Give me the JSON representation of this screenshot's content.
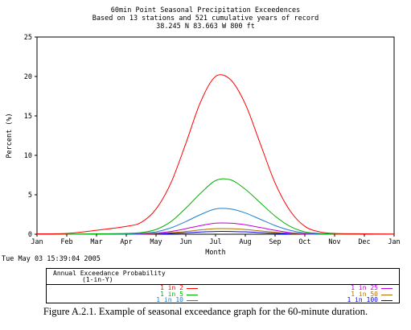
{
  "header": {
    "title": "60min Point Seasonal Precipitation Exceedences",
    "subtitle": "Based on 13 stations and 521 cumulative years of record",
    "location": "38.245 N 83.663 W 800 ft"
  },
  "timestamp": "Tue May 03 15:39:04 2005",
  "legend": {
    "title": "Annual Exceedance Probability",
    "subtitle": "(1-in-Y)",
    "items": [
      {
        "label": "1 in 2",
        "color": "#ff0000"
      },
      {
        "label": "1 in 5",
        "color": "#00b000"
      },
      {
        "label": "1 in 10",
        "color": "#1a80d0"
      },
      {
        "label": "1 in 25",
        "color": "#c000e0"
      },
      {
        "label": "1 in 50",
        "color": "#b07000"
      },
      {
        "label": "1 in 100",
        "color": "#0000ff"
      }
    ]
  },
  "caption": "Figure A.2.1.  Example of seasonal exceedance graph for the 60-minute duration.",
  "chart_data": {
    "type": "line",
    "xlabel": "Month",
    "ylabel": "Percent (%)",
    "x_ticks": [
      "Jan",
      "Feb",
      "Mar",
      "Apr",
      "May",
      "Jun",
      "Jul",
      "Aug",
      "Sep",
      "Oct",
      "Nov",
      "Dec",
      "Jan"
    ],
    "y_ticks": [
      "0",
      "5",
      "10",
      "15",
      "20",
      "25"
    ],
    "ylim": [
      0,
      25
    ],
    "x": [
      0,
      1,
      2,
      3,
      3.5,
      4,
      4.5,
      5,
      5.5,
      6,
      6.5,
      7,
      7.5,
      8,
      8.5,
      9,
      9.5,
      10,
      11,
      12
    ],
    "series": [
      {
        "name": "1 in 2",
        "values": [
          0.05,
          0.1,
          0.5,
          1.0,
          1.5,
          3.2,
          6.5,
          11.5,
          16.8,
          20.0,
          19.6,
          16.5,
          11.5,
          6.5,
          3.0,
          1.0,
          0.3,
          0.1,
          0.05,
          0.02
        ]
      },
      {
        "name": "1 in 5",
        "values": [
          0.0,
          0.0,
          0.05,
          0.1,
          0.2,
          0.6,
          1.6,
          3.3,
          5.2,
          6.8,
          6.9,
          5.7,
          4.0,
          2.3,
          1.0,
          0.3,
          0.1,
          0.02,
          0.0,
          0.0
        ]
      },
      {
        "name": "1 in 10",
        "values": [
          0.0,
          0.0,
          0.02,
          0.05,
          0.1,
          0.3,
          0.8,
          1.6,
          2.5,
          3.2,
          3.2,
          2.7,
          1.9,
          1.1,
          0.5,
          0.15,
          0.05,
          0.0,
          0.0,
          0.0
        ]
      },
      {
        "name": "1 in 25",
        "values": [
          0.0,
          0.0,
          0.0,
          0.02,
          0.05,
          0.15,
          0.35,
          0.7,
          1.1,
          1.4,
          1.4,
          1.2,
          0.85,
          0.5,
          0.2,
          0.07,
          0.02,
          0.0,
          0.0,
          0.0
        ]
      },
      {
        "name": "1 in 50",
        "values": [
          0.0,
          0.0,
          0.0,
          0.01,
          0.03,
          0.08,
          0.2,
          0.35,
          0.55,
          0.7,
          0.7,
          0.6,
          0.42,
          0.25,
          0.1,
          0.03,
          0.01,
          0.0,
          0.0,
          0.0
        ]
      },
      {
        "name": "1 in 100",
        "values": [
          0.0,
          0.0,
          0.0,
          0.0,
          0.02,
          0.05,
          0.1,
          0.18,
          0.28,
          0.35,
          0.35,
          0.3,
          0.21,
          0.12,
          0.05,
          0.02,
          0.0,
          0.0,
          0.0,
          0.0
        ]
      }
    ],
    "grid": false
  }
}
